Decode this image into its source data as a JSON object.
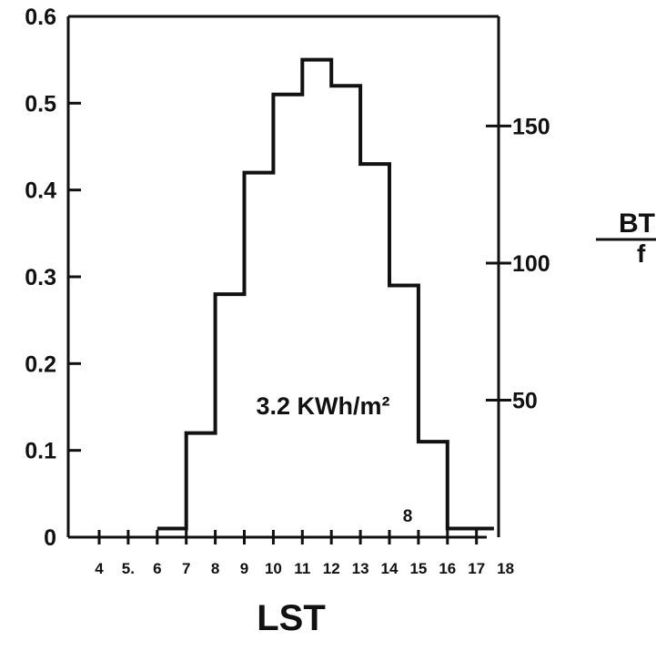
{
  "chart_data": {
    "type": "line",
    "title": "",
    "xlabel": "LST",
    "ylabel_right": "BT",
    "ylabel_right_denominator": "f",
    "xlim": [
      3.1,
      18
    ],
    "ylim_left": [
      0,
      0.6
    ],
    "ylim_right": [
      0,
      190
    ],
    "x_ticks": [
      "4",
      "5.",
      "6",
      "7",
      "8",
      "9",
      "10",
      "11",
      "12",
      "13",
      "14",
      "15",
      "16",
      "17",
      "18"
    ],
    "y_ticks_left": [
      "0",
      "0.1",
      "0.2",
      "0.3",
      "0.4",
      "0.5",
      "0.6"
    ],
    "y_ticks_right": [
      "50",
      "100",
      "150"
    ],
    "grid": false,
    "series": [
      {
        "step": "post",
        "x": [
          6,
          7,
          8,
          9,
          10,
          11,
          12,
          13,
          14,
          15,
          16,
          17
        ],
        "y": [
          0.01,
          0.12,
          0.28,
          0.42,
          0.51,
          0.55,
          0.52,
          0.43,
          0.29,
          0.11,
          0.01,
          0.01
        ]
      }
    ],
    "annotations": [
      {
        "text": "3.2 KWh/m²"
      },
      {
        "text": "8"
      }
    ]
  }
}
